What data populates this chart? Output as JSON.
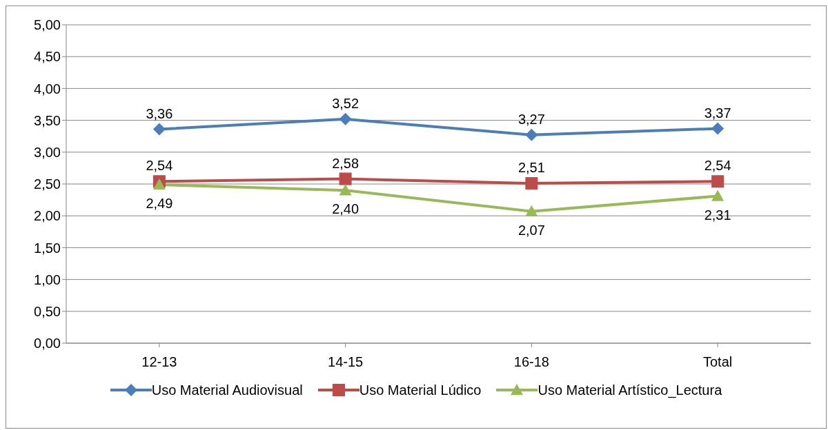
{
  "chart_data": {
    "type": "line",
    "categories": [
      "12-13",
      "14-15",
      "16-18",
      "Total"
    ],
    "series": [
      {
        "name": "Uso Material Audiovisual",
        "color": "#4a7ebb",
        "marker": "diamond",
        "values": [
          3.36,
          3.52,
          3.27,
          3.37
        ],
        "value_labels": [
          "3,36",
          "3,52",
          "3,27",
          "3,37"
        ]
      },
      {
        "name": "Uso Material Lúdico",
        "color": "#be4b48",
        "marker": "square",
        "values": [
          2.54,
          2.58,
          2.51,
          2.54
        ],
        "value_labels": [
          "2,54",
          "2,58",
          "2,51",
          "2,54"
        ]
      },
      {
        "name": "Uso Material Artístico_Lectura",
        "color": "#98b954",
        "marker": "triangle",
        "values": [
          2.49,
          2.4,
          2.07,
          2.31
        ],
        "value_labels": [
          "2,49",
          "2,40",
          "2,07",
          "2,31"
        ]
      }
    ],
    "ylim": [
      0,
      5
    ],
    "yticks": [
      {
        "value": 0,
        "label": "0,00"
      },
      {
        "value": 0.5,
        "label": "0,50"
      },
      {
        "value": 1,
        "label": "1,00"
      },
      {
        "value": 1.5,
        "label": "1,50"
      },
      {
        "value": 2,
        "label": "2,00"
      },
      {
        "value": 2.5,
        "label": "2,50"
      },
      {
        "value": 3,
        "label": "3,00"
      },
      {
        "value": 3.5,
        "label": "3,50"
      },
      {
        "value": 4,
        "label": "4,00"
      },
      {
        "value": 4.5,
        "label": "4,50"
      },
      {
        "value": 5,
        "label": "5,00"
      }
    ],
    "grid": "y",
    "legend": "bottom",
    "line_style": "solid"
  }
}
